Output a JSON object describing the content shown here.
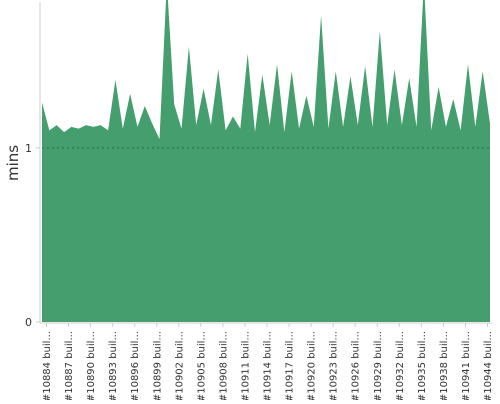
{
  "chart_data": {
    "type": "area",
    "ylabel": "mins",
    "xlabel": "",
    "title": "",
    "ylim": [
      0,
      1.82
    ],
    "yticks": [
      {
        "value": 0,
        "label": "0"
      },
      {
        "value": 1,
        "label": "1"
      }
    ],
    "reference_line": {
      "value": 1,
      "style": "dotted"
    },
    "tick_labels": [
      "#10884 buil...",
      "#10887 buil...",
      "#10890 buil...",
      "#10893 buil...",
      "#10896 buil...",
      "#10899 buil...",
      "#10902 buil...",
      "#10905 buil...",
      "#10908 buil...",
      "#10911 buil...",
      "#10914 buil...",
      "#10917 buil...",
      "#10920 buil...",
      "#10923 buil...",
      "#10926 buil...",
      "#10929 buil...",
      "#10932 buil...",
      "#10935 buil...",
      "#10938 buil...",
      "#10941 buil...",
      "#10944 buil..."
    ],
    "series": [
      {
        "color": "#459e6d",
        "values": [
          1.26,
          1.1,
          1.13,
          1.09,
          1.12,
          1.11,
          1.13,
          1.12,
          1.13,
          1.1,
          1.39,
          1.11,
          1.31,
          1.12,
          1.24,
          1.14,
          1.05,
          1.95,
          1.25,
          1.11,
          1.58,
          1.13,
          1.34,
          1.13,
          1.45,
          1.1,
          1.18,
          1.11,
          1.54,
          1.09,
          1.42,
          1.13,
          1.48,
          1.09,
          1.44,
          1.11,
          1.3,
          1.12,
          1.76,
          1.11,
          1.44,
          1.12,
          1.41,
          1.13,
          1.47,
          1.12,
          1.67,
          1.13,
          1.45,
          1.13,
          1.4,
          1.12,
          1.95,
          1.1,
          1.35,
          1.12,
          1.28,
          1.1,
          1.48,
          1.12,
          1.44,
          1.14
        ]
      }
    ],
    "fill_color": "#459e6d",
    "axis_color": "#cccccc",
    "text_color": "#333333"
  }
}
